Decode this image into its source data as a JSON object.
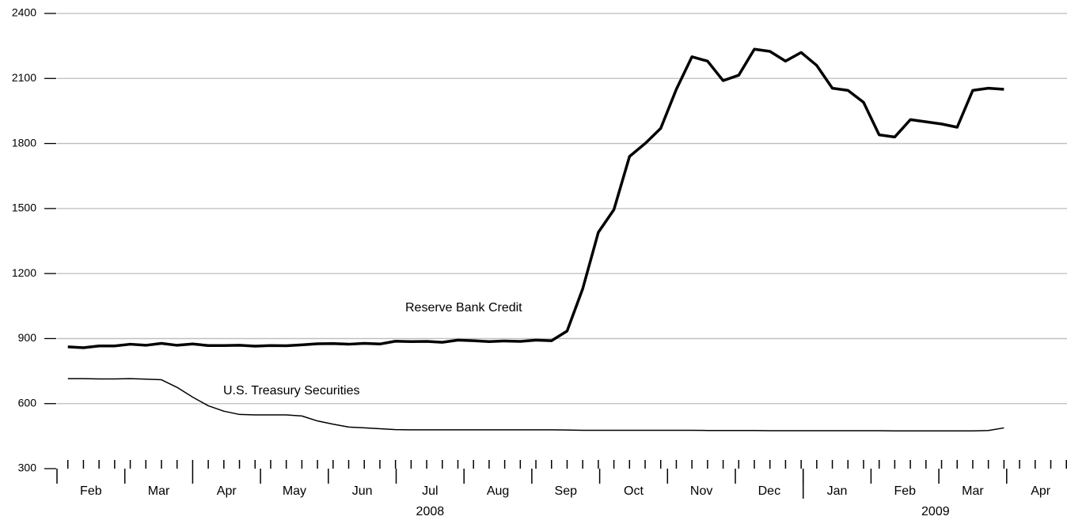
{
  "chart_data": {
    "type": "line",
    "x": [
      0.16,
      0.39,
      0.62,
      0.85,
      1.08,
      1.31,
      1.54,
      1.77,
      2,
      2.23,
      2.46,
      2.69,
      2.92,
      3.15,
      3.38,
      3.61,
      3.84,
      4.07,
      4.3,
      4.53,
      4.76,
      4.99,
      5.22,
      5.45,
      5.68,
      5.91,
      6.14,
      6.37,
      6.6,
      6.83,
      7.06,
      7.29,
      7.52,
      7.75,
      7.98,
      8.21,
      8.44,
      8.67,
      8.9,
      9.13,
      9.36,
      9.59,
      9.82,
      10.05,
      10.28,
      10.51,
      10.74,
      10.97,
      11.2,
      11.43,
      11.66,
      11.89,
      12.12,
      12.35,
      12.58,
      12.81,
      13.04,
      13.27,
      13.5,
      13.73,
      13.96
    ],
    "series": [
      {
        "name": "Reserve Bank Credit",
        "color": "#000000",
        "width": 3.5,
        "values": [
          862,
          858,
          866,
          866,
          874,
          869,
          878,
          869,
          875,
          868,
          868,
          869,
          865,
          868,
          867,
          871,
          876,
          877,
          874,
          878,
          875,
          888,
          886,
          887,
          883,
          893,
          890,
          886,
          889,
          887,
          893,
          890,
          935,
          1130,
          1390,
          1495,
          1740,
          1800,
          1870,
          2050,
          2200,
          2180,
          2090,
          2115,
          2235,
          2225,
          2180,
          2220,
          2160,
          2055,
          2045,
          1990,
          1840,
          1830,
          1910,
          1900,
          1890,
          1875,
          2045,
          2055,
          2050
        ]
      },
      {
        "name": "U.S. Treasury Securities",
        "color": "#000000",
        "width": 1.5,
        "values": [
          715,
          715,
          714,
          714,
          715,
          713,
          710,
          675,
          630,
          590,
          565,
          550,
          548,
          548,
          548,
          543,
          520,
          505,
          492,
          488,
          484,
          480,
          479,
          479,
          479,
          479,
          479,
          479,
          479,
          479,
          479,
          479,
          478,
          477,
          477,
          477,
          477,
          477,
          477,
          477,
          477,
          476,
          476,
          476,
          476,
          475,
          475,
          475,
          475,
          475,
          475,
          475,
          475,
          474,
          474,
          474,
          474,
          474,
          474,
          476,
          488
        ]
      }
    ],
    "xlim": [
      0,
      14.9
    ],
    "ylim": [
      300,
      2400
    ],
    "yticks": [
      300,
      600,
      900,
      1200,
      1500,
      1800,
      2100,
      2400
    ],
    "grid": true,
    "month_boundaries": [
      0,
      1,
      2,
      3,
      4,
      5,
      6,
      7,
      8,
      9,
      10,
      11,
      12,
      13,
      14
    ],
    "year_boundaries": [
      11
    ],
    "xminorticks": [
      0.16,
      0.39,
      0.62,
      0.85,
      1.08,
      1.31,
      1.54,
      1.77,
      2,
      2.23,
      2.46,
      2.69,
      2.92,
      3.15,
      3.38,
      3.61,
      3.84,
      4.07,
      4.3,
      4.53,
      4.76,
      4.99,
      5.22,
      5.45,
      5.68,
      5.91,
      6.14,
      6.37,
      6.6,
      6.83,
      7.06,
      7.29,
      7.52,
      7.75,
      7.98,
      8.21,
      8.44,
      8.67,
      8.9,
      9.13,
      9.36,
      9.59,
      9.82,
      10.05,
      10.28,
      10.51,
      10.74,
      10.97,
      11.2,
      11.43,
      11.66,
      11.89,
      12.12,
      12.35,
      12.58,
      12.81,
      13.04,
      13.27,
      13.5,
      13.73,
      13.96,
      14.19,
      14.42,
      14.65,
      14.88
    ],
    "months": [
      {
        "value": 0.5,
        "label": "Feb"
      },
      {
        "value": 1.5,
        "label": "Mar"
      },
      {
        "value": 2.5,
        "label": "Apr"
      },
      {
        "value": 3.5,
        "label": "May"
      },
      {
        "value": 4.5,
        "label": "Jun"
      },
      {
        "value": 5.5,
        "label": "Jul"
      },
      {
        "value": 6.5,
        "label": "Aug"
      },
      {
        "value": 7.5,
        "label": "Sep"
      },
      {
        "value": 8.5,
        "label": "Oct"
      },
      {
        "value": 9.5,
        "label": "Nov"
      },
      {
        "value": 10.5,
        "label": "Dec"
      },
      {
        "value": 11.5,
        "label": "Jan"
      },
      {
        "value": 12.5,
        "label": "Feb"
      },
      {
        "value": 13.5,
        "label": "Mar"
      },
      {
        "value": 14.5,
        "label": "Apr"
      }
    ],
    "years": [
      {
        "value": 5.5,
        "label": "2008"
      },
      {
        "value": 12.95,
        "label": "2009"
      }
    ]
  }
}
